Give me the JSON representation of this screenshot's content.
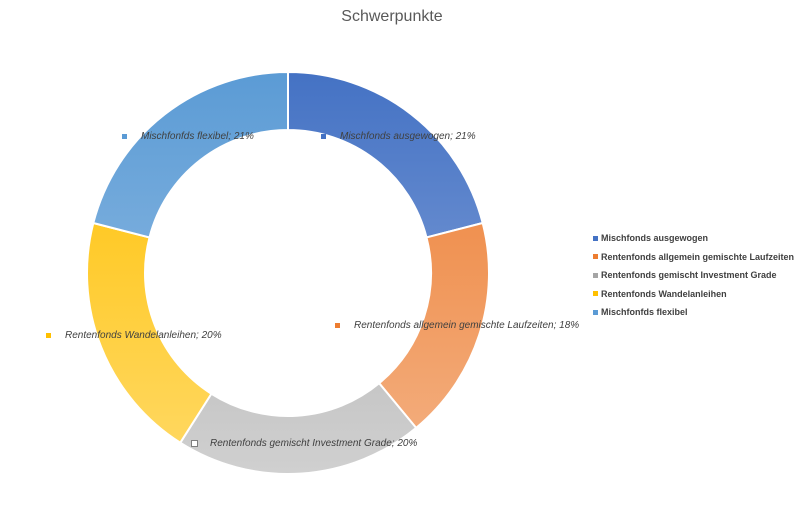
{
  "chart_data": {
    "type": "pie",
    "variant": "doughnut",
    "title": "Schwerpunkte",
    "categories": [
      "Mischfonds ausgewogen",
      "Rentenfonds allgemein gemischte Laufzeiten",
      "Rentenfonds gemischt Investment Grade",
      "Rentenfonds Wandelanleihen",
      "Mischfonfds flexibel"
    ],
    "values": [
      21,
      18,
      20,
      20,
      21
    ],
    "unit": "%",
    "data_labels": [
      "Mischfonds ausgewogen; 21%",
      "Rentenfonds allgemein gemischte Laufzeiten; 18%",
      "Rentenfonds gemischt Investment Grade; 20%",
      "Rentenfonds Wandelanleihen; 20%",
      "Mischfonfds flexibel; 21%"
    ],
    "colors": [
      [
        "#4472c4",
        "#8faadc"
      ],
      [
        "#ed7d31",
        "#f4b183"
      ],
      [
        "#a5a5a5",
        "#d0d0d0"
      ],
      [
        "#ffc000",
        "#ffd966"
      ],
      [
        "#5b9bd5",
        "#9dc3e6"
      ]
    ],
    "legend_position": "right"
  }
}
